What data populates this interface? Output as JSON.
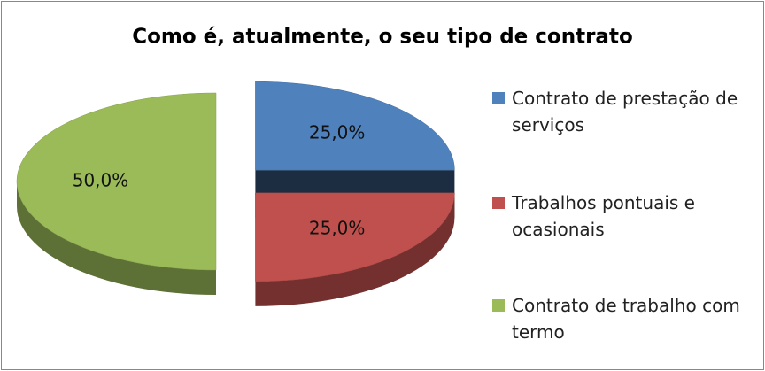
{
  "chart_data": {
    "type": "pie",
    "title": "Como é, atualmente, o seu tipo de contrato",
    "categories": [
      "Contrato de prestação de serviços",
      "Trabalhos pontuais e ocasionais",
      "Contrato de trabalho com termo"
    ],
    "values": [
      25,
      25,
      50
    ],
    "value_labels": [
      "25,0%",
      "25,0%",
      "50,0%"
    ],
    "colors": [
      "#4f81bd",
      "#c0504d",
      "#9bbb59"
    ],
    "legend": "right"
  }
}
